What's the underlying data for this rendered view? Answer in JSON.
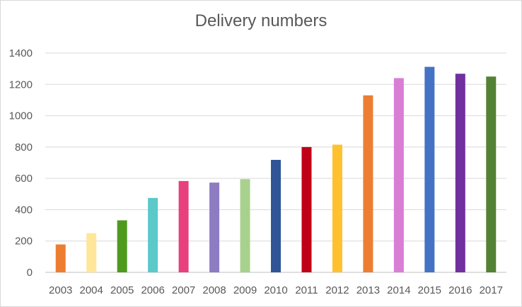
{
  "chart_data": {
    "type": "bar",
    "title": "Delivery numbers",
    "xlabel": "",
    "ylabel": "",
    "categories": [
      "2003",
      "2004",
      "2005",
      "2006",
      "2007",
      "2008",
      "2009",
      "2010",
      "2011",
      "2012",
      "2013",
      "2014",
      "2015",
      "2016",
      "2017"
    ],
    "values": [
      178,
      250,
      332,
      475,
      583,
      573,
      595,
      718,
      800,
      815,
      1130,
      1240,
      1312,
      1268,
      1250
    ],
    "ylim": [
      0,
      1400
    ],
    "yticks": [
      0,
      200,
      400,
      600,
      800,
      1000,
      1200,
      1400
    ],
    "grid": true,
    "legend": "none",
    "colors": [
      "#ED7D31",
      "#FFE699",
      "#4E9A1F",
      "#5BC8CA",
      "#E8407C",
      "#8E7CC3",
      "#A9D18E",
      "#2F5597",
      "#C00018",
      "#FFC12F",
      "#ED7D31",
      "#DA7ED5",
      "#4472C4",
      "#7030A0",
      "#548235"
    ]
  }
}
